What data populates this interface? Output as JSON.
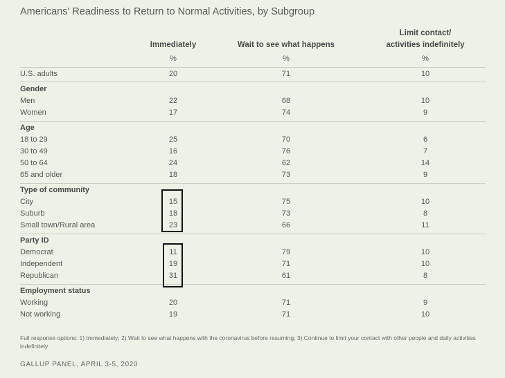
{
  "chart_data": {
    "type": "table",
    "title": "Americans' Readiness to Return to Normal Activities, by Subgroup",
    "columns": [
      {
        "header": "Immediately",
        "unit": "%"
      },
      {
        "header": "Wait to see what happens",
        "unit": "%"
      },
      {
        "header_line1": "Limit contact/",
        "header_line2": "activities indefinitely",
        "unit": "%"
      }
    ],
    "rows": [
      {
        "label": "U.S. adults",
        "values": [
          "20",
          "71",
          "10"
        ]
      },
      {
        "group": "Gender"
      },
      {
        "label": "Men",
        "values": [
          "22",
          "68",
          "10"
        ]
      },
      {
        "label": "Women",
        "values": [
          "17",
          "74",
          "9"
        ]
      },
      {
        "group": "Age"
      },
      {
        "label": "18 to 29",
        "values": [
          "25",
          "70",
          "6"
        ]
      },
      {
        "label": "30 to 49",
        "values": [
          "16",
          "76",
          "7"
        ]
      },
      {
        "label": "50 to 64",
        "values": [
          "24",
          "62",
          "14"
        ]
      },
      {
        "label": "65 and older",
        "values": [
          "18",
          "73",
          "9"
        ]
      },
      {
        "group": "Type of community"
      },
      {
        "label": "City",
        "values": [
          "15",
          "75",
          "10"
        ]
      },
      {
        "label": "Suburb",
        "values": [
          "18",
          "73",
          "8"
        ]
      },
      {
        "label": "Small town/Rural area",
        "values": [
          "23",
          "66",
          "11"
        ]
      },
      {
        "group": "Party ID"
      },
      {
        "label": "Democrat",
        "values": [
          "11",
          "79",
          "10"
        ]
      },
      {
        "label": "Independent",
        "values": [
          "19",
          "71",
          "10"
        ]
      },
      {
        "label": "Republican",
        "values": [
          "31",
          "61",
          "8"
        ]
      },
      {
        "group": "Employment status"
      },
      {
        "label": "Working",
        "values": [
          "20",
          "71",
          "9"
        ]
      },
      {
        "label": "Not working",
        "values": [
          "19",
          "71",
          "10"
        ]
      }
    ],
    "footnote": "Full response options: 1) Immediately; 2) Wait to see what happens with the coronavirus before resuming; 3) Continue to limit your contact with other people and daily activities indefinitely",
    "source": "GALLUP PANEL, APRIL 3-5, 2020"
  }
}
